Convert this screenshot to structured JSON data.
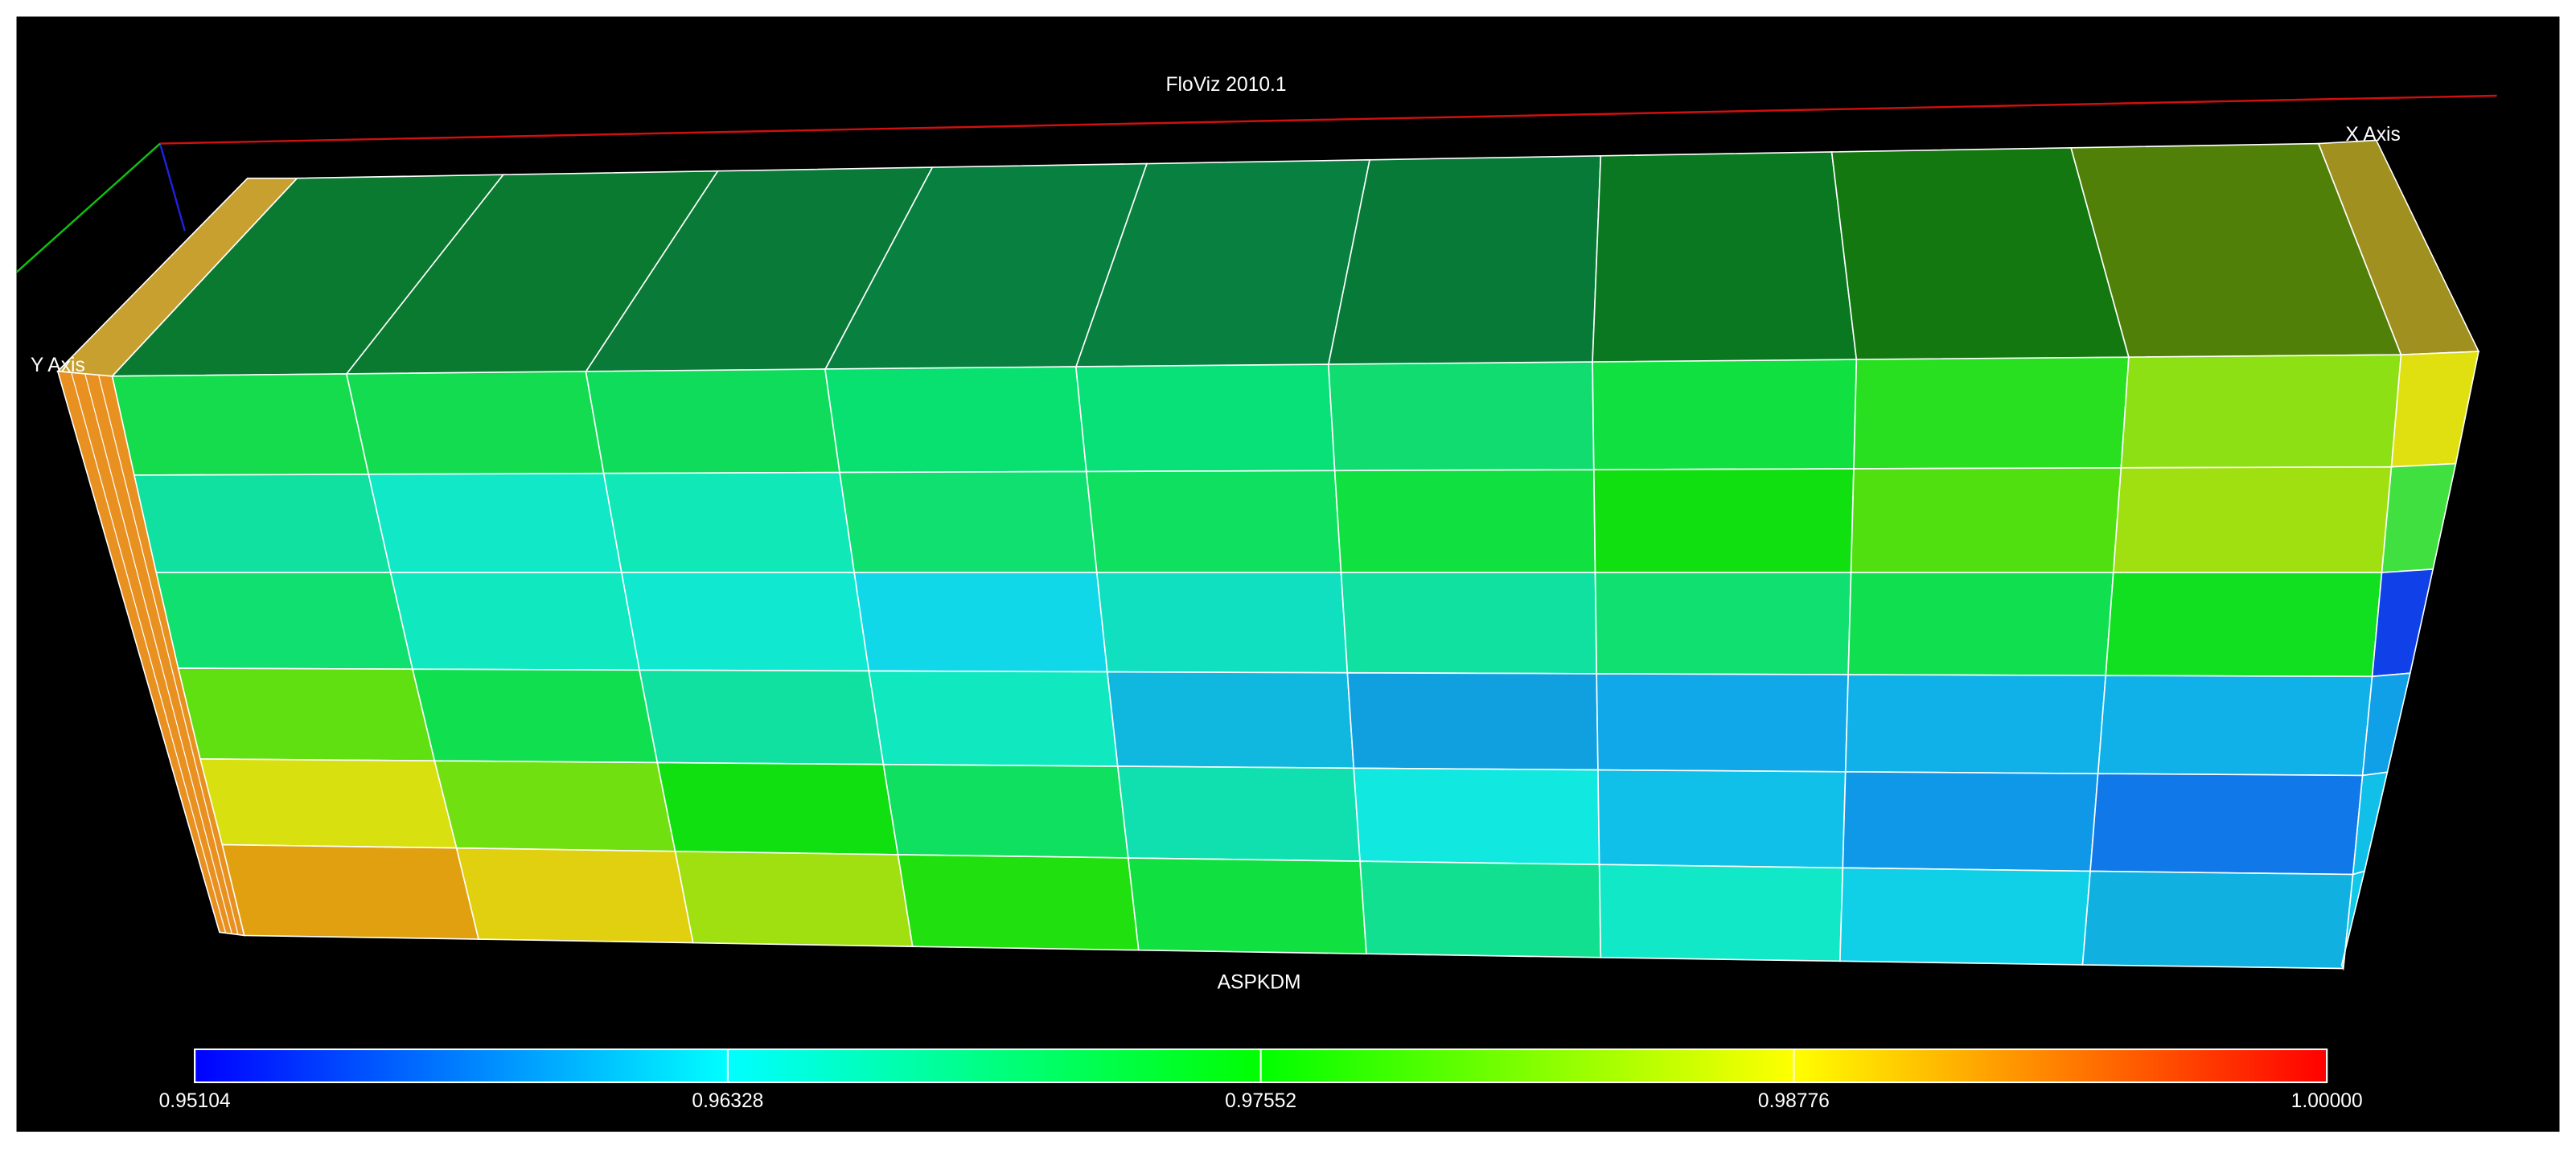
{
  "header": {
    "title": "FloViz 2010.1"
  },
  "axes": {
    "x_label": "X Axis",
    "y_label": "Y Axis"
  },
  "variable": "ASPKDM",
  "colorbar": {
    "ticks": [
      0.95104,
      0.96328,
      0.97552,
      0.98776,
      {
        "value": 1,
        "label": "1.00000"
      }
    ]
  }
}
